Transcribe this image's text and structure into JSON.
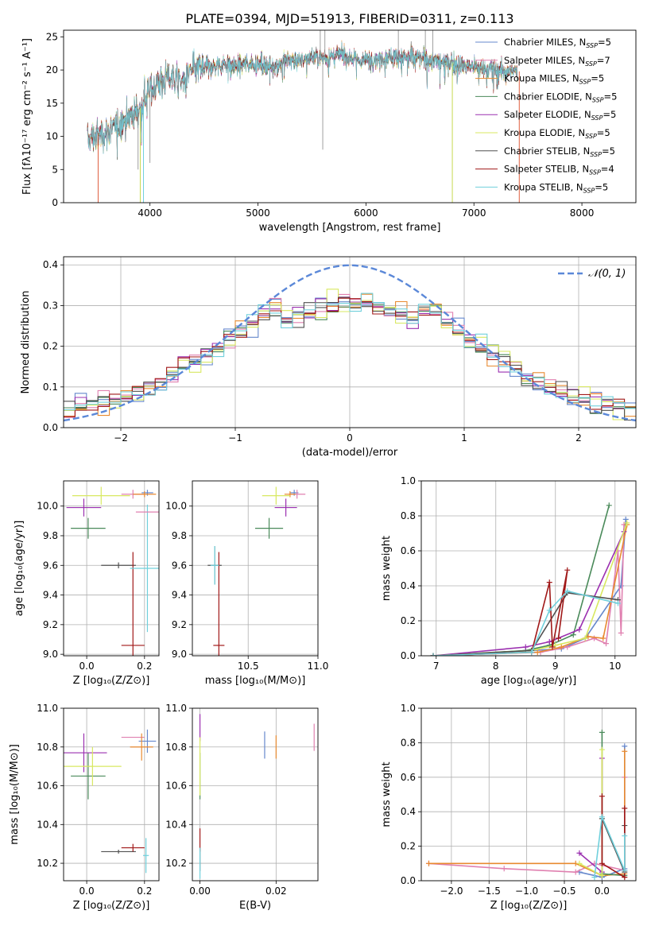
{
  "title": "PLATE=0394, MJD=51913, FIBERID=0311, z=0.113",
  "colors": {
    "Chabrier MILES": "#6688cc",
    "Salpeter MILES": "#e080b0",
    "Kroupa MILES": "#e88a30",
    "Chabrier ELODIE": "#4a8a5a",
    "Salpeter ELODIE": "#9b30b0",
    "Kroupa ELODIE": "#d8e860",
    "Chabrier STELIB": "#505050",
    "Salpeter STELIB": "#a01818",
    "Kroupa STELIB": "#70d0dc",
    "normal": "#5b88d8"
  },
  "chart_data": [
    {
      "id": "spectrum",
      "type": "line",
      "xlabel": "wavelength [Angstrom, rest frame]",
      "ylabel": "Flux [fλ10⁻¹⁷ erg cm⁻² s⁻¹ A⁻¹]",
      "xlim": [
        3200,
        8500
      ],
      "ylim": [
        0,
        26
      ],
      "xticks": [
        4000,
        5000,
        6000,
        7000,
        8000
      ],
      "yticks": [
        0,
        5,
        10,
        15,
        20,
        25
      ],
      "grid": false,
      "legend_position": "top-right",
      "legend": [
        {
          "name": "Chabrier MILES",
          "label": "Chabrier MILES, N",
          "sub": "SSP",
          "n": "=5"
        },
        {
          "name": "Salpeter MILES",
          "label": "Salpeter MILES, N",
          "sub": "SSP",
          "n": "=7"
        },
        {
          "name": "Kroupa MILES",
          "label": "Kroupa MILES, N",
          "sub": "SSP",
          "n": "=5"
        },
        {
          "name": "Chabrier ELODIE",
          "label": "Chabrier ELODIE, N",
          "sub": "SSP",
          "n": "=5"
        },
        {
          "name": "Salpeter ELODIE",
          "label": "Salpeter ELODIE, N",
          "sub": "SSP",
          "n": "=5"
        },
        {
          "name": "Kroupa ELODIE",
          "label": "Kroupa ELODIE, N",
          "sub": "SSP",
          "n": "=5"
        },
        {
          "name": "Chabrier STELIB",
          "label": "Chabrier STELIB, N",
          "sub": "SSP",
          "n": "=5"
        },
        {
          "name": "Salpeter STELIB",
          "label": "Salpeter STELIB, N",
          "sub": "SSP",
          "n": "=4"
        },
        {
          "name": "Kroupa STELIB",
          "label": "Kroupa STELIB, N",
          "sub": "SSP",
          "n": "=5"
        }
      ],
      "continuum": [
        [
          3420,
          9.5
        ],
        [
          3500,
          10
        ],
        [
          3650,
          11
        ],
        [
          3800,
          13
        ],
        [
          3900,
          14
        ],
        [
          4000,
          17
        ],
        [
          4100,
          18.5
        ],
        [
          4200,
          19
        ],
        [
          4300,
          18
        ],
        [
          4400,
          20
        ],
        [
          4500,
          20.5
        ],
        [
          4600,
          20.5
        ],
        [
          4700,
          21
        ],
        [
          4800,
          20.5
        ],
        [
          4900,
          21
        ],
        [
          5000,
          21
        ],
        [
          5100,
          20.5
        ],
        [
          5200,
          21
        ],
        [
          5300,
          21.5
        ],
        [
          5400,
          21.5
        ],
        [
          5500,
          22
        ],
        [
          5600,
          22
        ],
        [
          5700,
          22
        ],
        [
          5800,
          22.5
        ],
        [
          5900,
          21.5
        ],
        [
          6000,
          21.5
        ],
        [
          6200,
          22
        ],
        [
          6400,
          22
        ],
        [
          6600,
          21.5
        ],
        [
          6800,
          21
        ],
        [
          7000,
          20.5
        ],
        [
          7200,
          20
        ],
        [
          7400,
          19.8
        ]
      ],
      "spikes": [
        [
          5577,
          26
        ],
        [
          5620,
          26
        ],
        [
          5600,
          8
        ],
        [
          6300,
          26
        ],
        [
          6550,
          26
        ],
        [
          6620,
          26
        ],
        [
          3890,
          5
        ],
        [
          4000,
          6
        ]
      ]
    },
    {
      "id": "residuals",
      "type": "histogram",
      "xlabel": "(data-model)/error",
      "ylabel": "Normed distribution",
      "xlim": [
        -2.5,
        2.5
      ],
      "ylim": [
        0,
        0.42
      ],
      "xticks": [
        -2,
        -1,
        0,
        1,
        2
      ],
      "yticks": [
        0.0,
        0.1,
        0.2,
        0.3,
        0.4
      ],
      "bin_width": 0.1,
      "grid": true,
      "legend": [
        {
          "name": "normal",
          "label": "𝒩(0, 1)",
          "style": "dashed"
        }
      ]
    },
    {
      "id": "age-vs-Z",
      "type": "scatter",
      "xlabel": "Z [log₁₀(Z/Z⊙)]",
      "ylabel": "age  [log₁₀(age/yr)]",
      "xlim": [
        -0.08,
        0.25
      ],
      "ylim": [
        8.99,
        10.17
      ],
      "xticks": [
        0.0,
        0.2
      ],
      "yticks": [
        9.0,
        9.2,
        9.4,
        9.6,
        9.8,
        10.0
      ],
      "grid": true,
      "points": [
        {
          "s": "Chabrier MILES",
          "x": 0.21,
          "y": 10.09,
          "xerr": 0.02,
          "yerr": 0.02
        },
        {
          "s": "Salpeter MILES",
          "x": 0.16,
          "y": 10.08,
          "xerr": 0.04,
          "yerr": 0.03
        },
        {
          "s": "Kroupa MILES",
          "x": 0.2,
          "y": 10.08,
          "xerr": 0.04,
          "yerr": 0.02
        },
        {
          "s": "Chabrier ELODIE",
          "x": 0.005,
          "y": 9.85,
          "xerr": 0.06,
          "yerr": 0.07
        },
        {
          "s": "Salpeter ELODIE",
          "x": -0.01,
          "y": 9.99,
          "xerr": 0.06,
          "yerr": 0.06
        },
        {
          "s": "Kroupa ELODIE",
          "x": 0.05,
          "y": 10.07,
          "xerr": 0.1,
          "yerr": 0.06
        },
        {
          "s": "Chabrier STELIB",
          "x": 0.11,
          "y": 9.6,
          "xerr": 0.06,
          "yerr": 0.02
        },
        {
          "s": "Salpeter STELIB",
          "x": 0.16,
          "y": 9.06,
          "xerr": 0.04,
          "yerr": 0.63
        },
        {
          "s": "Kroupa STELIB",
          "x": 0.21,
          "y": 9.58,
          "xerr": 0.06,
          "yerr": 0.43
        },
        {
          "s": "Salpeter MILES",
          "x": 0.21,
          "y": 9.96,
          "xerr": 0.04,
          "yerr": 0.0
        }
      ]
    },
    {
      "id": "age-vs-mass",
      "type": "scatter",
      "xlabel": "mass [log₁₀(M/M⊙)]",
      "ylabel": "",
      "xlim": [
        10.1,
        11.0
      ],
      "ylim": [
        8.99,
        10.17
      ],
      "xticks": [
        10.5,
        11.0
      ],
      "yticks": [
        9.0,
        9.2,
        9.4,
        9.6,
        9.8,
        10.0
      ],
      "grid": true,
      "points": [
        {
          "s": "Chabrier MILES",
          "x": 10.83,
          "y": 10.09,
          "xerr": 0.03,
          "yerr": 0.02
        },
        {
          "s": "Salpeter MILES",
          "x": 10.85,
          "y": 10.08,
          "xerr": 0.06,
          "yerr": 0.03
        },
        {
          "s": "Kroupa MILES",
          "x": 10.8,
          "y": 10.08,
          "xerr": 0.04,
          "yerr": 0.02
        },
        {
          "s": "Chabrier ELODIE",
          "x": 10.65,
          "y": 9.85,
          "xerr": 0.1,
          "yerr": 0.07
        },
        {
          "s": "Salpeter ELODIE",
          "x": 10.77,
          "y": 9.99,
          "xerr": 0.08,
          "yerr": 0.06
        },
        {
          "s": "Kroupa ELODIE",
          "x": 10.7,
          "y": 10.07,
          "xerr": 0.1,
          "yerr": 0.06
        },
        {
          "s": "Chabrier STELIB",
          "x": 10.26,
          "y": 9.6,
          "xerr": 0.05,
          "yerr": 0.13
        },
        {
          "s": "Salpeter STELIB",
          "x": 10.29,
          "y": 9.06,
          "xerr": 0.04,
          "yerr": 0.63
        },
        {
          "s": "Kroupa STELIB",
          "x": 10.26,
          "y": 9.6,
          "xerr": 0.03,
          "yerr": 0.13
        }
      ]
    },
    {
      "id": "weight-vs-age",
      "type": "line",
      "xlabel": "age  [log₁₀(age/yr)]",
      "ylabel": "mass weight",
      "xlim": [
        6.75,
        10.35
      ],
      "ylim": [
        0,
        1.0
      ],
      "xticks": [
        7,
        8,
        9,
        10
      ],
      "yticks": [
        0.0,
        0.2,
        0.4,
        0.6,
        0.8,
        1.0
      ],
      "grid": true,
      "series": [
        {
          "s": "Chabrier MILES",
          "x": [
            6.95,
            8.6,
            9.1,
            9.5,
            10.1,
            10.18
          ],
          "y": [
            0.0,
            0.03,
            0.04,
            0.1,
            0.4,
            0.78
          ]
        },
        {
          "s": "Salpeter MILES",
          "x": [
            6.95,
            8.75,
            9.2,
            9.65,
            9.85,
            10.05,
            10.1,
            10.15
          ],
          "y": [
            0.0,
            0.02,
            0.05,
            0.1,
            0.07,
            0.6,
            0.13,
            0.75
          ]
        },
        {
          "s": "Kroupa MILES",
          "x": [
            6.95,
            8.7,
            9.1,
            9.55,
            9.8,
            10.2
          ],
          "y": [
            0.0,
            0.02,
            0.05,
            0.11,
            0.1,
            0.75
          ]
        },
        {
          "s": "Chabrier ELODIE",
          "x": [
            6.95,
            8.5,
            8.9,
            9.3,
            9.9
          ],
          "y": [
            0.0,
            0.03,
            0.06,
            0.12,
            0.86
          ]
        },
        {
          "s": "Salpeter ELODIE",
          "x": [
            6.95,
            8.5,
            8.9,
            9.4,
            10.15
          ],
          "y": [
            0.0,
            0.05,
            0.08,
            0.15,
            0.71
          ]
        },
        {
          "s": "Kroupa ELODIE",
          "x": [
            6.95,
            8.6,
            9.0,
            9.5,
            10.2
          ],
          "y": [
            0.0,
            0.03,
            0.06,
            0.1,
            0.76
          ]
        },
        {
          "s": "Chabrier STELIB",
          "x": [
            6.95,
            8.6,
            9.2,
            10.05
          ],
          "y": [
            0.0,
            0.03,
            0.36,
            0.32
          ]
        },
        {
          "s": "Salpeter STELIB",
          "x": [
            6.95,
            8.6,
            8.9,
            8.95,
            9.2,
            9.05
          ],
          "y": [
            0.0,
            0.02,
            0.42,
            0.05,
            0.49,
            0.1
          ]
        },
        {
          "s": "Kroupa STELIB",
          "x": [
            6.95,
            8.6,
            8.9,
            9.2,
            10.05
          ],
          "y": [
            0.0,
            0.02,
            0.26,
            0.37,
            0.3
          ]
        }
      ]
    },
    {
      "id": "mass-vs-Z",
      "type": "scatter",
      "xlabel": "Z [log₁₀(Z/Z⊙)]",
      "ylabel": "mass [log₁₀(M/M⊙)]",
      "xlim": [
        -0.08,
        0.25
      ],
      "ylim": [
        10.11,
        11.0
      ],
      "xticks": [
        0.0,
        0.2
      ],
      "yticks": [
        10.2,
        10.4,
        10.6,
        10.8,
        11.0
      ],
      "grid": true,
      "points": [
        {
          "s": "Chabrier MILES",
          "x": 0.21,
          "y": 10.83,
          "xerr": 0.03,
          "yerr": 0.06
        },
        {
          "s": "Salpeter MILES",
          "x": 0.16,
          "y": 10.85,
          "xerr": 0.04,
          "yerr": 0.0
        },
        {
          "s": "Kroupa MILES",
          "x": 0.19,
          "y": 10.8,
          "xerr": 0.04,
          "yerr": 0.07
        },
        {
          "s": "Chabrier ELODIE",
          "x": 0.005,
          "y": 10.65,
          "xerr": 0.06,
          "yerr": 0.12
        },
        {
          "s": "Salpeter ELODIE",
          "x": -0.01,
          "y": 10.77,
          "xerr": 0.08,
          "yerr": 0.1
        },
        {
          "s": "Kroupa ELODIE",
          "x": 0.02,
          "y": 10.7,
          "xerr": 0.1,
          "yerr": 0.1
        },
        {
          "s": "Chabrier STELIB",
          "x": 0.11,
          "y": 10.26,
          "xerr": 0.06,
          "yerr": 0.01
        },
        {
          "s": "Salpeter STELIB",
          "x": 0.16,
          "y": 10.28,
          "xerr": 0.04,
          "yerr": 0.02
        },
        {
          "s": "Kroupa STELIB",
          "x": 0.205,
          "y": 10.24,
          "xerr": 0.01,
          "yerr": 0.09
        }
      ]
    },
    {
      "id": "mass-vs-EBV",
      "type": "scatter",
      "xlabel": "E(B-V)",
      "ylabel": "",
      "xlim": [
        -0.002,
        0.031
      ],
      "ylim": [
        10.11,
        11.0
      ],
      "xticks": [
        0.0,
        0.02
      ],
      "yticks": [
        10.2,
        10.4,
        10.6,
        10.8,
        11.0
      ],
      "grid": true,
      "points": [
        {
          "s": "Chabrier MILES",
          "x": 0.017,
          "y": 10.81,
          "xerr": 0.0,
          "yerr": 0.07
        },
        {
          "s": "Salpeter MILES",
          "x": 0.03,
          "y": 10.85,
          "xerr": 0.0,
          "yerr": 0.07
        },
        {
          "s": "Kroupa MILES",
          "x": 0.02,
          "y": 10.8,
          "xerr": 0.0,
          "yerr": 0.06
        },
        {
          "s": "Chabrier ELODIE",
          "x": 0.0,
          "y": 10.65,
          "xerr": 0.0,
          "yerr": 0.12
        },
        {
          "s": "Salpeter ELODIE",
          "x": 0.0,
          "y": 10.9,
          "xerr": 0.0,
          "yerr": 0.07
        },
        {
          "s": "Kroupa ELODIE",
          "x": 0.0,
          "y": 10.7,
          "xerr": 0.0,
          "yerr": 0.15
        },
        {
          "s": "Chabrier STELIB",
          "x": 0.0,
          "y": 10.22,
          "xerr": 0.0,
          "yerr": 0.06
        },
        {
          "s": "Salpeter STELIB",
          "x": 0.0,
          "y": 10.32,
          "xerr": 0.0,
          "yerr": 0.06
        },
        {
          "s": "Kroupa STELIB",
          "x": 0.0,
          "y": 10.2,
          "xerr": 0.0,
          "yerr": 0.08
        }
      ]
    },
    {
      "id": "weight-vs-Z",
      "type": "line",
      "xlabel": "Z [log₁₀(Z/Z⊙)]",
      "ylabel": "mass weight",
      "xlim": [
        -2.4,
        0.45
      ],
      "ylim": [
        0,
        1.0
      ],
      "xticks": [
        -2.0,
        -1.5,
        -1.0,
        -0.5,
        0.0
      ],
      "yticks": [
        0.0,
        0.2,
        0.4,
        0.6,
        0.8,
        1.0
      ],
      "grid": true,
      "series": [
        {
          "s": "Chabrier MILES",
          "x": [
            -0.3,
            0.0,
            0.3,
            0.3
          ],
          "y": [
            0.05,
            0.02,
            0.07,
            0.78
          ]
        },
        {
          "s": "Salpeter MILES",
          "x": [
            -2.3,
            -1.3,
            -0.35,
            -0.1,
            0.3,
            0.3
          ],
          "y": [
            0.1,
            0.07,
            0.05,
            0.1,
            0.06,
            0.6
          ]
        },
        {
          "s": "Kroupa MILES",
          "x": [
            -2.3,
            -0.35,
            0.0,
            0.3,
            0.3
          ],
          "y": [
            0.1,
            0.1,
            0.03,
            0.04,
            0.75
          ]
        },
        {
          "s": "Chabrier ELODIE",
          "x": [
            0.0,
            0.0,
            0.3
          ],
          "y": [
            0.86,
            0.04,
            0.03
          ]
        },
        {
          "s": "Salpeter ELODIE",
          "x": [
            -0.3,
            0.0,
            0.0
          ],
          "y": [
            0.16,
            0.05,
            0.71
          ]
        },
        {
          "s": "Kroupa ELODIE",
          "x": [
            -0.3,
            0.0,
            0.0
          ],
          "y": [
            0.1,
            0.03,
            0.76
          ]
        },
        {
          "s": "Chabrier STELIB",
          "x": [
            0.0,
            0.3,
            0.3
          ],
          "y": [
            0.36,
            0.05,
            0.32
          ]
        },
        {
          "s": "Salpeter STELIB",
          "x": [
            0.0,
            0.0,
            0.3,
            0.3
          ],
          "y": [
            0.49,
            0.1,
            0.02,
            0.42
          ]
        },
        {
          "s": "Kroupa STELIB",
          "x": [
            -0.1,
            0.0,
            0.3,
            0.3
          ],
          "y": [
            0.02,
            0.37,
            0.06,
            0.26
          ]
        }
      ]
    }
  ]
}
